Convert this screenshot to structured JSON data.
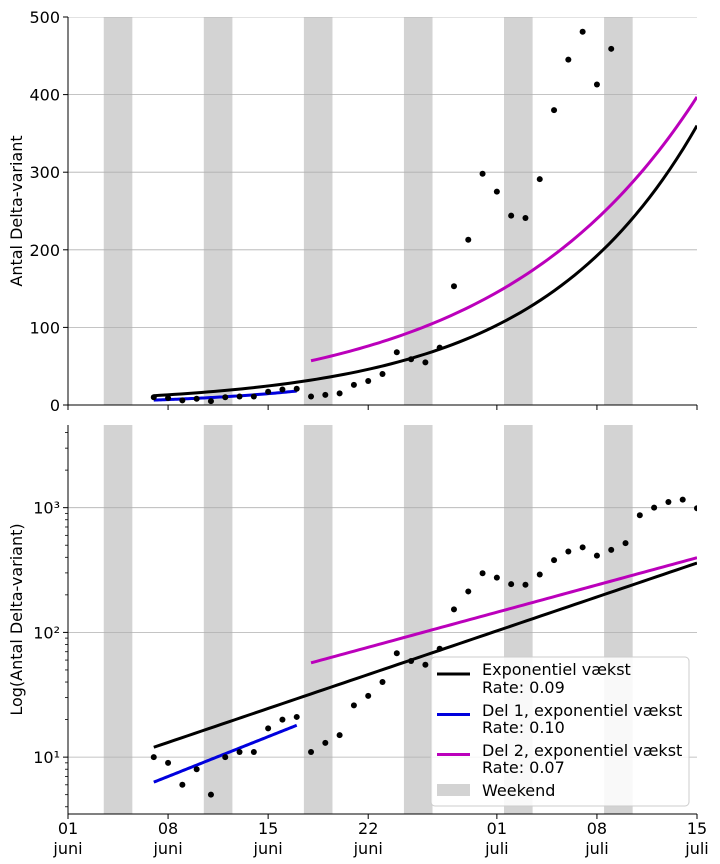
{
  "chart_data": [
    {
      "type": "scatter",
      "ylabel": "Antal Delta-variant",
      "yscale": "linear",
      "ylim": [
        0,
        500
      ],
      "yticks": [
        0,
        100,
        200,
        300,
        400,
        500
      ],
      "ytick_labels": [
        "0",
        "100",
        "200",
        "300",
        "400",
        "500"
      ],
      "xlim": [
        "2021-06-01",
        "2021-07-15"
      ],
      "grid": "horizontal",
      "show_xtick_labels": false,
      "legend": null
    },
    {
      "type": "scatter",
      "ylabel": "Log(Antal Delta-variant)",
      "yscale": "log",
      "ylim": [
        3.5,
        4600
      ],
      "yticks": [
        10,
        100,
        1000
      ],
      "ytick_labels": [
        "10¹",
        "10²",
        "10³"
      ],
      "xlim": [
        "2021-06-01",
        "2021-07-15"
      ],
      "grid": "horizontal",
      "show_xtick_labels": true,
      "legend": "lower-right"
    }
  ],
  "x_ticks": [
    {
      "date": "2021-06-01",
      "day": "01",
      "month": "juni"
    },
    {
      "date": "2021-06-08",
      "day": "08",
      "month": "juni"
    },
    {
      "date": "2021-06-15",
      "day": "15",
      "month": "juni"
    },
    {
      "date": "2021-06-22",
      "day": "22",
      "month": "juni"
    },
    {
      "date": "2021-07-01",
      "day": "01",
      "month": "juli"
    },
    {
      "date": "2021-07-08",
      "day": "08",
      "month": "juli"
    },
    {
      "date": "2021-07-15",
      "day": "15",
      "month": "juli"
    }
  ],
  "weekends": [
    [
      "2021-06-04",
      "2021-06-06"
    ],
    [
      "2021-06-11",
      "2021-06-13"
    ],
    [
      "2021-06-18",
      "2021-06-20"
    ],
    [
      "2021-06-25",
      "2021-06-27"
    ],
    [
      "2021-07-02",
      "2021-07-04"
    ],
    [
      "2021-07-09",
      "2021-07-11"
    ]
  ],
  "observations": [
    {
      "date": "2021-06-07",
      "value": 10
    },
    {
      "date": "2021-06-08",
      "value": 9
    },
    {
      "date": "2021-06-09",
      "value": 6
    },
    {
      "date": "2021-06-10",
      "value": 8
    },
    {
      "date": "2021-06-11",
      "value": 5
    },
    {
      "date": "2021-06-12",
      "value": 10
    },
    {
      "date": "2021-06-13",
      "value": 11
    },
    {
      "date": "2021-06-14",
      "value": 11
    },
    {
      "date": "2021-06-15",
      "value": 17
    },
    {
      "date": "2021-06-16",
      "value": 20
    },
    {
      "date": "2021-06-17",
      "value": 21
    },
    {
      "date": "2021-06-18",
      "value": 11
    },
    {
      "date": "2021-06-19",
      "value": 13
    },
    {
      "date": "2021-06-20",
      "value": 15
    },
    {
      "date": "2021-06-21",
      "value": 26
    },
    {
      "date": "2021-06-22",
      "value": 31
    },
    {
      "date": "2021-06-23",
      "value": 40
    },
    {
      "date": "2021-06-24",
      "value": 68
    },
    {
      "date": "2021-06-25",
      "value": 59
    },
    {
      "date": "2021-06-26",
      "value": 55
    },
    {
      "date": "2021-06-27",
      "value": 74
    },
    {
      "date": "2021-06-28",
      "value": 153
    },
    {
      "date": "2021-06-29",
      "value": 213
    },
    {
      "date": "2021-06-30",
      "value": 298
    },
    {
      "date": "2021-07-01",
      "value": 275
    },
    {
      "date": "2021-07-02",
      "value": 244
    },
    {
      "date": "2021-07-03",
      "value": 241
    },
    {
      "date": "2021-07-04",
      "value": 291
    },
    {
      "date": "2021-07-05",
      "value": 380
    },
    {
      "date": "2021-07-06",
      "value": 445
    },
    {
      "date": "2021-07-07",
      "value": 481
    },
    {
      "date": "2021-07-08",
      "value": 413
    },
    {
      "date": "2021-07-09",
      "value": 459
    },
    {
      "date": "2021-07-10",
      "value": 520
    },
    {
      "date": "2021-07-11",
      "value": 870
    },
    {
      "date": "2021-07-12",
      "value": 1000
    },
    {
      "date": "2021-07-13",
      "value": 1110
    },
    {
      "date": "2021-07-14",
      "value": 1160
    },
    {
      "date": "2021-07-15",
      "value": 990
    }
  ],
  "fits": [
    {
      "label": "Exponentiel vækst",
      "rate_label": "Rate: 0.09",
      "color": "#000000",
      "start": "2021-06-07",
      "end": "2021-07-15",
      "start_value": 12,
      "end_value": 360
    },
    {
      "label": "Del 1, exponentiel vækst",
      "rate_label": "Rate: 0.10",
      "color": "#0000dd",
      "start": "2021-06-07",
      "end": "2021-06-17",
      "start_value": 6.3,
      "end_value": 18
    },
    {
      "label": "Del 2, exponentiel vækst",
      "rate_label": "Rate: 0.07",
      "color": "#bb00bb",
      "start": "2021-06-18",
      "end": "2021-07-15",
      "start_value": 57,
      "end_value": 397
    }
  ],
  "weekend_label": "Weekend",
  "colors": {
    "weekend": "#d3d3d3",
    "grid": "#b0b0b0",
    "points": "#000000",
    "legend_border": "#cccccc"
  }
}
